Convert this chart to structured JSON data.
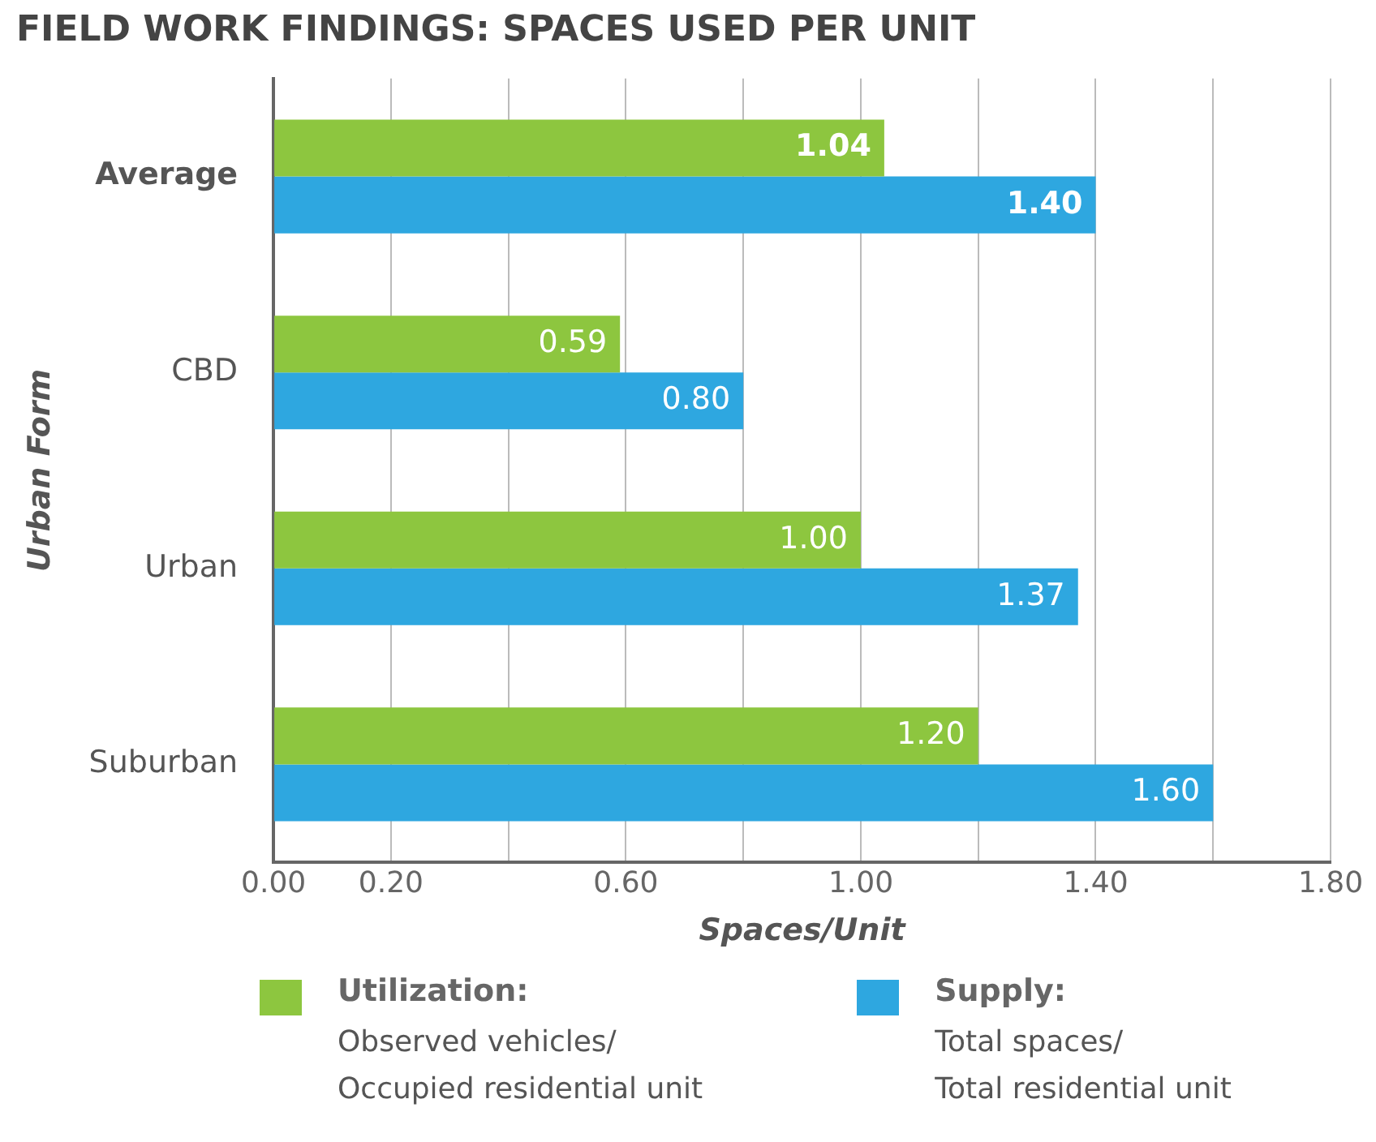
{
  "chart_data": {
    "type": "bar",
    "orientation": "horizontal",
    "title": "FIELD WORK FINDINGS: SPACES USED PER UNIT",
    "xlabel": "Spaces/Unit",
    "ylabel": "Urban Form",
    "categories": [
      "Average",
      "CBD",
      "Urban",
      "Suburban"
    ],
    "series": [
      {
        "name": "Utilization:",
        "color": "#8dc63f",
        "values": [
          1.04,
          0.59,
          1.0,
          1.2
        ],
        "value_labels": [
          "1.04",
          "0.59",
          "1.00",
          "1.20"
        ]
      },
      {
        "name": "Supply:",
        "color": "#2ea7e0",
        "values": [
          1.4,
          0.8,
          1.37,
          1.6
        ],
        "value_labels": [
          "1.40",
          "0.80",
          "1.37",
          "1.60"
        ]
      }
    ],
    "xlim": [
      0,
      1.8
    ],
    "xticks": [
      {
        "value": 0,
        "label": "0.00"
      },
      {
        "value": 0.2,
        "label": "0.20"
      },
      {
        "value": 0.4,
        "label": null
      },
      {
        "value": 0.6,
        "label": "0.60"
      },
      {
        "value": 0.8,
        "label": null
      },
      {
        "value": 1.0,
        "label": "1.00"
      },
      {
        "value": 1.2,
        "label": null
      },
      {
        "value": 1.4,
        "label": "1.40"
      },
      {
        "value": 1.6,
        "label": null
      },
      {
        "value": 1.8,
        "label": "1.80"
      }
    ],
    "grid": "x",
    "legend": "bottom",
    "annotations": [
      "Observed vehicles/",
      "Occupied residential unit",
      "Total spaces/",
      "Total residential unit"
    ]
  }
}
